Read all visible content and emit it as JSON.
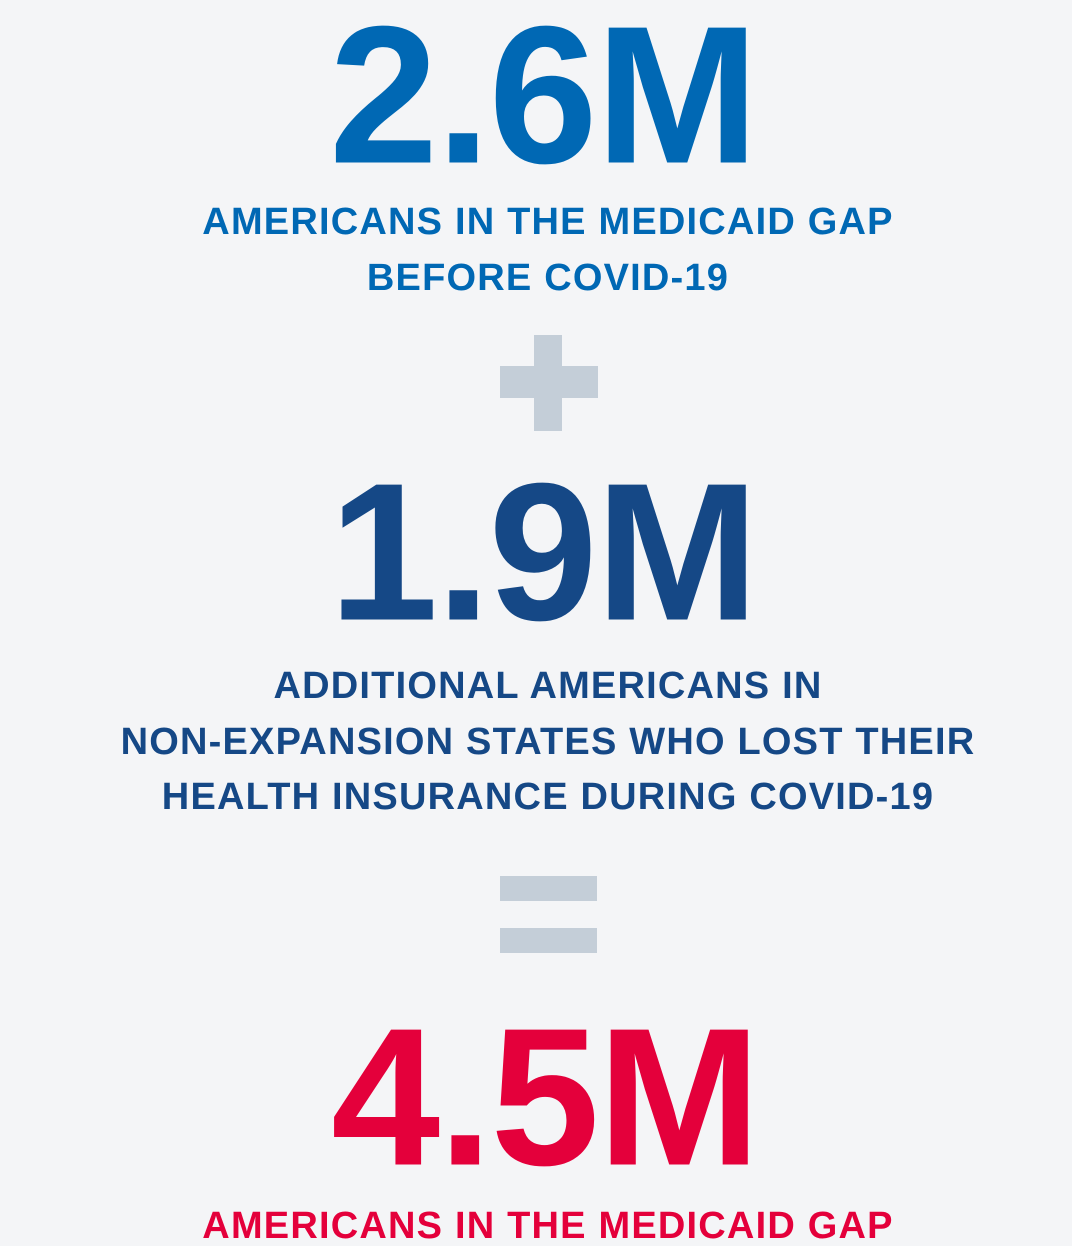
{
  "blocks": [
    {
      "number": "2.6M",
      "lines": [
        "AMERICANS IN THE MEDICAID GAP",
        "BEFORE COVID-19"
      ]
    },
    {
      "number": "1.9M",
      "lines": [
        "ADDITIONAL AMERICANS IN",
        "NON-EXPANSION STATES WHO LOST THEIR",
        "HEALTH INSURANCE DURING COVID-19"
      ]
    },
    {
      "number": "4.5M",
      "lines": [
        "AMERICANS IN THE MEDICAID GAP"
      ]
    }
  ]
}
